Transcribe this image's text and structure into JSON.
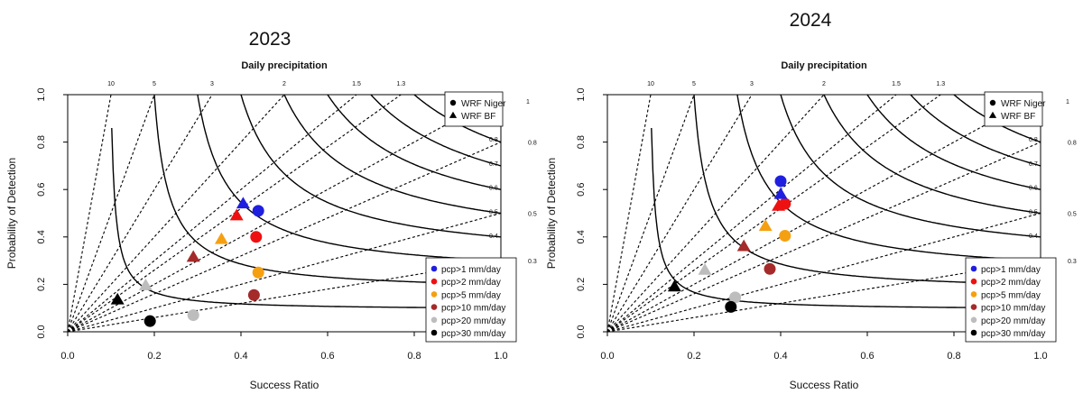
{
  "chart_data": [
    {
      "type": "scatter",
      "title": "2023",
      "top_label": "Daily precipitation",
      "xlabel": "Success Ratio",
      "ylabel": "Probability of Detection",
      "xlim": [
        0,
        1
      ],
      "ylim": [
        0,
        1
      ],
      "x_ticks": [
        "0.0",
        "0.2",
        "0.4",
        "0.6",
        "0.8",
        "1.0"
      ],
      "y_ticks": [
        "0.0",
        "0.2",
        "0.4",
        "0.6",
        "0.8",
        "1.0"
      ],
      "bias_lines": [
        {
          "bias": 10,
          "label": "10"
        },
        {
          "bias": 5,
          "label": "5"
        },
        {
          "bias": 3,
          "label": "3"
        },
        {
          "bias": 2,
          "label": "2"
        },
        {
          "bias": 1.5,
          "label": "1.5"
        },
        {
          "bias": 1.3,
          "label": "1.3"
        },
        {
          "bias": 1,
          "label": "1"
        },
        {
          "bias": 0.8,
          "label": "0.8"
        },
        {
          "bias": 0.5,
          "label": "0.5"
        },
        {
          "bias": 0.3,
          "label": "0.3"
        }
      ],
      "csi_levels": [
        0.1,
        0.2,
        0.3,
        0.4,
        0.5,
        0.6,
        0.7,
        0.8
      ],
      "csi_labels": [
        {
          "csi": 0.4,
          "label": "0.4"
        },
        {
          "csi": 0.5,
          "label": "0.5"
        },
        {
          "csi": 0.6,
          "label": "0.6"
        },
        {
          "csi": 0.7,
          "label": "0.7"
        },
        {
          "csi": 0.8,
          "label": "0.8"
        }
      ],
      "marker_legend": {
        "position": "top-right",
        "items": [
          {
            "shape": "circle",
            "label": "WRF Niger"
          },
          {
            "shape": "triangle",
            "label": "WRF BF"
          }
        ]
      },
      "threshold_legend": {
        "position": "bottom-right",
        "items": [
          {
            "label": "pcp>1 mm/day",
            "color": "#1f1fe0"
          },
          {
            "label": "pcp>2 mm/day",
            "color": "#ee1111"
          },
          {
            "label": "pcp>5 mm/day",
            "color": "#f5a011"
          },
          {
            "label": "pcp>10 mm/day",
            "color": "#a52a2a"
          },
          {
            "label": "pcp>20 mm/day",
            "color": "#bdbdbd"
          },
          {
            "label": "pcp>30 mm/day",
            "color": "#000000"
          }
        ]
      },
      "points": [
        {
          "series": "WRF Niger",
          "threshold": "pcp>1 mm/day",
          "shape": "circle",
          "color": "#1f1fe0",
          "x": 0.44,
          "y": 0.51
        },
        {
          "series": "WRF Niger",
          "threshold": "pcp>2 mm/day",
          "shape": "circle",
          "color": "#ee1111",
          "x": 0.435,
          "y": 0.4
        },
        {
          "series": "WRF Niger",
          "threshold": "pcp>5 mm/day",
          "shape": "circle",
          "color": "#f5a011",
          "x": 0.44,
          "y": 0.25
        },
        {
          "series": "WRF Niger",
          "threshold": "pcp>10 mm/day",
          "shape": "circle",
          "color": "#a52a2a",
          "x": 0.43,
          "y": 0.155
        },
        {
          "series": "WRF Niger",
          "threshold": "pcp>20 mm/day",
          "shape": "circle",
          "color": "#bdbdbd",
          "x": 0.29,
          "y": 0.07
        },
        {
          "series": "WRF Niger",
          "threshold": "pcp>30 mm/day",
          "shape": "circle",
          "color": "#000000",
          "x": 0.19,
          "y": 0.045
        },
        {
          "series": "WRF BF",
          "threshold": "pcp>1 mm/day",
          "shape": "triangle",
          "color": "#1f1fe0",
          "x": 0.405,
          "y": 0.54
        },
        {
          "series": "WRF BF",
          "threshold": "pcp>2 mm/day",
          "shape": "triangle",
          "color": "#ee1111",
          "x": 0.39,
          "y": 0.49
        },
        {
          "series": "WRF BF",
          "threshold": "pcp>5 mm/day",
          "shape": "triangle",
          "color": "#f5a011",
          "x": 0.355,
          "y": 0.39
        },
        {
          "series": "WRF BF",
          "threshold": "pcp>10 mm/day",
          "shape": "triangle",
          "color": "#a52a2a",
          "x": 0.29,
          "y": 0.315
        },
        {
          "series": "WRF BF",
          "threshold": "pcp>20 mm/day",
          "shape": "triangle",
          "color": "#bdbdbd",
          "x": 0.18,
          "y": 0.195
        },
        {
          "series": "WRF BF",
          "threshold": "pcp>30 mm/day",
          "shape": "triangle",
          "color": "#000000",
          "x": 0.115,
          "y": 0.135
        }
      ]
    },
    {
      "type": "scatter",
      "title": "2024",
      "top_label": "Daily precipitation",
      "xlabel": "Success Ratio",
      "ylabel": "Probability of Detection",
      "xlim": [
        0,
        1
      ],
      "ylim": [
        0,
        1
      ],
      "x_ticks": [
        "0.0",
        "0.2",
        "0.4",
        "0.6",
        "0.8",
        "1.0"
      ],
      "y_ticks": [
        "0.0",
        "0.2",
        "0.4",
        "0.6",
        "0.8",
        "1.0"
      ],
      "bias_lines": [
        {
          "bias": 10,
          "label": "10"
        },
        {
          "bias": 5,
          "label": "5"
        },
        {
          "bias": 3,
          "label": "3"
        },
        {
          "bias": 2,
          "label": "2"
        },
        {
          "bias": 1.5,
          "label": "1.5"
        },
        {
          "bias": 1.3,
          "label": "1.3"
        },
        {
          "bias": 1,
          "label": "1"
        },
        {
          "bias": 0.8,
          "label": "0.8"
        },
        {
          "bias": 0.5,
          "label": "0.5"
        },
        {
          "bias": 0.3,
          "label": "0.3"
        }
      ],
      "csi_levels": [
        0.1,
        0.2,
        0.3,
        0.4,
        0.5,
        0.6,
        0.7,
        0.8
      ],
      "csi_labels": [
        {
          "csi": 0.4,
          "label": "0.4"
        },
        {
          "csi": 0.5,
          "label": "0.5"
        },
        {
          "csi": 0.6,
          "label": "0.6"
        },
        {
          "csi": 0.7,
          "label": "0.7"
        },
        {
          "csi": 0.8,
          "label": "0.8"
        }
      ],
      "marker_legend": {
        "position": "top-right",
        "items": [
          {
            "shape": "circle",
            "label": "WRF Niger"
          },
          {
            "shape": "triangle",
            "label": "WRF BF"
          }
        ]
      },
      "threshold_legend": {
        "position": "bottom-right",
        "items": [
          {
            "label": "pcp>1 mm/day",
            "color": "#1f1fe0"
          },
          {
            "label": "pcp>2 mm/day",
            "color": "#ee1111"
          },
          {
            "label": "pcp>5 mm/day",
            "color": "#f5a011"
          },
          {
            "label": "pcp>10 mm/day",
            "color": "#a52a2a"
          },
          {
            "label": "pcp>20 mm/day",
            "color": "#bdbdbd"
          },
          {
            "label": "pcp>30 mm/day",
            "color": "#000000"
          }
        ]
      },
      "points": [
        {
          "series": "WRF Niger",
          "threshold": "pcp>1 mm/day",
          "shape": "circle",
          "color": "#1f1fe0",
          "x": 0.4,
          "y": 0.635
        },
        {
          "series": "WRF Niger",
          "threshold": "pcp>2 mm/day",
          "shape": "circle",
          "color": "#ee1111",
          "x": 0.41,
          "y": 0.54
        },
        {
          "series": "WRF Niger",
          "threshold": "pcp>5 mm/day",
          "shape": "circle",
          "color": "#f5a011",
          "x": 0.41,
          "y": 0.405
        },
        {
          "series": "WRF Niger",
          "threshold": "pcp>10 mm/day",
          "shape": "circle",
          "color": "#a52a2a",
          "x": 0.375,
          "y": 0.265
        },
        {
          "series": "WRF Niger",
          "threshold": "pcp>20 mm/day",
          "shape": "circle",
          "color": "#bdbdbd",
          "x": 0.295,
          "y": 0.145
        },
        {
          "series": "WRF Niger",
          "threshold": "pcp>30 mm/day",
          "shape": "circle",
          "color": "#000000",
          "x": 0.285,
          "y": 0.105
        },
        {
          "series": "WRF BF",
          "threshold": "pcp>1 mm/day",
          "shape": "triangle",
          "color": "#1f1fe0",
          "x": 0.4,
          "y": 0.58
        },
        {
          "series": "WRF BF",
          "threshold": "pcp>2 mm/day",
          "shape": "triangle",
          "color": "#ee1111",
          "x": 0.395,
          "y": 0.53
        },
        {
          "series": "WRF BF",
          "threshold": "pcp>5 mm/day",
          "shape": "triangle",
          "color": "#f5a011",
          "x": 0.365,
          "y": 0.445
        },
        {
          "series": "WRF BF",
          "threshold": "pcp>10 mm/day",
          "shape": "triangle",
          "color": "#a52a2a",
          "x": 0.315,
          "y": 0.36
        },
        {
          "series": "WRF BF",
          "threshold": "pcp>20 mm/day",
          "shape": "triangle",
          "color": "#bdbdbd",
          "x": 0.225,
          "y": 0.26
        },
        {
          "series": "WRF BF",
          "threshold": "pcp>30 mm/day",
          "shape": "triangle",
          "color": "#000000",
          "x": 0.155,
          "y": 0.19
        }
      ]
    }
  ]
}
